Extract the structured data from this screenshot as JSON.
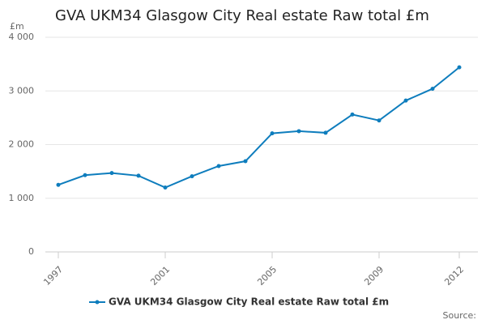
{
  "chart_data": {
    "type": "line",
    "title": "GVA UKM34 Glasgow City Real estate Raw total £m",
    "y_label": "£m",
    "source": "Source:",
    "x": [
      1997,
      1998,
      1999,
      2000,
      2001,
      2002,
      2003,
      2004,
      2005,
      2006,
      2007,
      2008,
      2009,
      2010,
      2011,
      2012
    ],
    "series": [
      {
        "name": "GVA UKM34 Glasgow City Real estate Raw total £m",
        "color": "#0e7dbd",
        "values": [
          1250,
          1430,
          1470,
          1420,
          1200,
          1410,
          1600,
          1690,
          2210,
          2250,
          2220,
          2560,
          2450,
          2820,
          3040,
          3440
        ]
      }
    ],
    "xlim": [
      1997,
      2012
    ],
    "xticks": [
      1997,
      2001,
      2005,
      2009,
      2012
    ],
    "ylim": [
      0,
      4000
    ],
    "yticks": [
      0,
      {
        "value": 1000,
        "label": "1 000"
      },
      {
        "value": 2000,
        "label": "2 000"
      },
      {
        "value": 3000,
        "label": "3 000"
      },
      {
        "value": 4000,
        "label": "4 000"
      }
    ],
    "grid": true
  }
}
